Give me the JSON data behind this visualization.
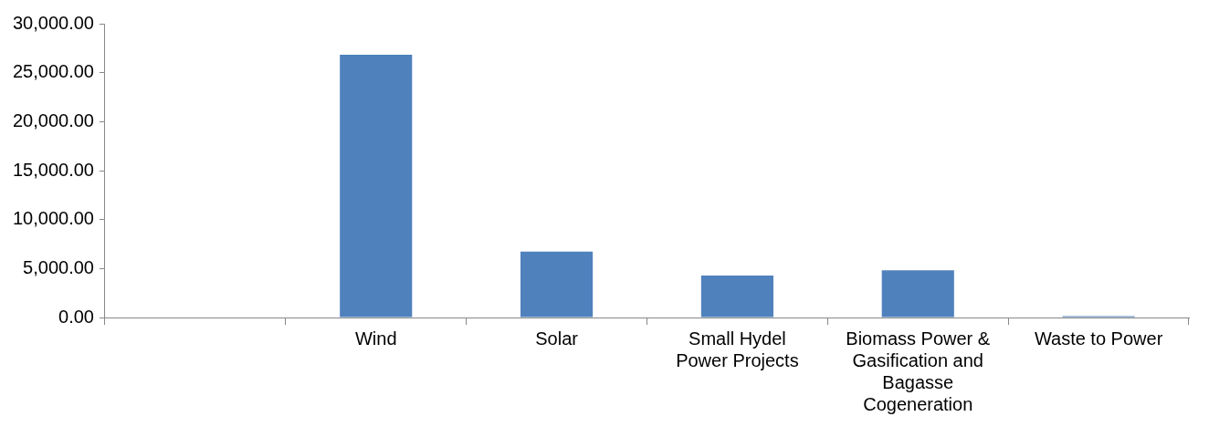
{
  "chart_data": {
    "type": "bar",
    "categories": [
      null,
      "Wind",
      "Solar",
      "Small Hydel Power Projects",
      "Biomass Power & Gasification and Bagasse Cogeneration",
      "Waste to Power"
    ],
    "values": [
      null,
      26830,
      6740,
      4290,
      4830,
      150
    ],
    "color": "#4f81bd",
    "ylim": [
      0,
      30000
    ],
    "yticks": [
      {
        "value": 0,
        "label": "0.00"
      },
      {
        "value": 5000,
        "label": "5,000.00"
      },
      {
        "value": 10000,
        "label": "10,000.00"
      },
      {
        "value": 15000,
        "label": "15,000.00"
      },
      {
        "value": 20000,
        "label": "20,000.00"
      },
      {
        "value": 25000,
        "label": "25,000.00"
      },
      {
        "value": 30000,
        "label": "30,000.00"
      }
    ],
    "grid": false,
    "legend": false
  }
}
